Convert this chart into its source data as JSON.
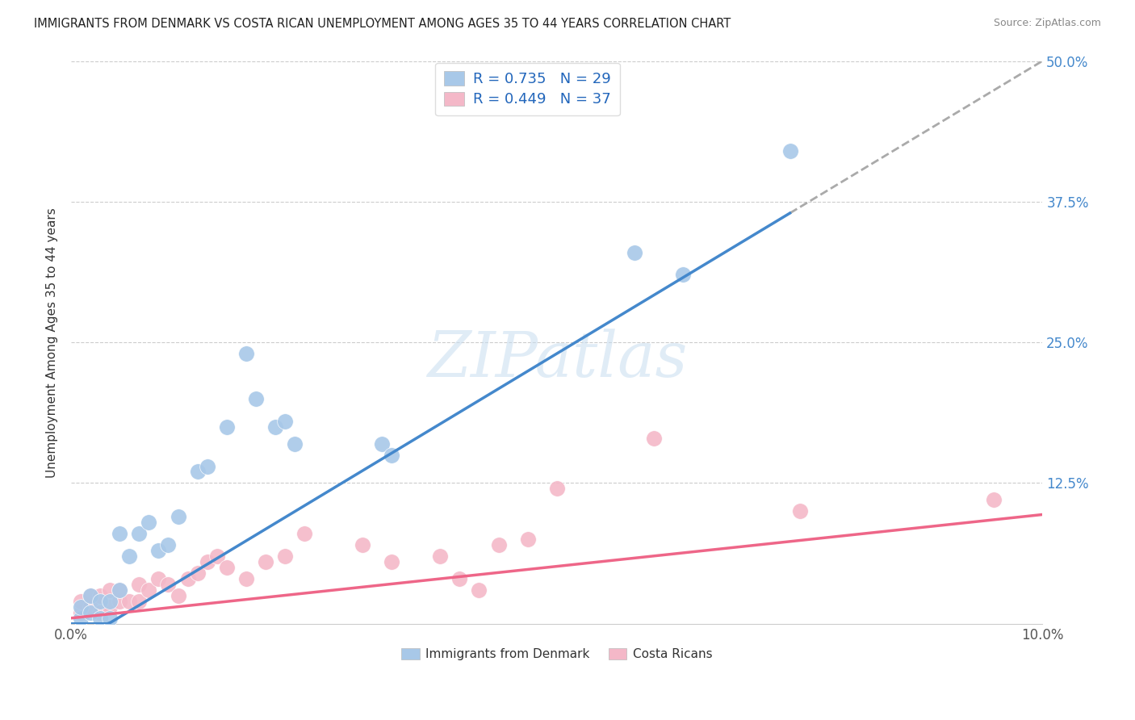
{
  "title": "IMMIGRANTS FROM DENMARK VS COSTA RICAN UNEMPLOYMENT AMONG AGES 35 TO 44 YEARS CORRELATION CHART",
  "source": "Source: ZipAtlas.com",
  "ylabel": "Unemployment Among Ages 35 to 44 years",
  "xlim": [
    0,
    0.1
  ],
  "ylim": [
    0,
    0.5
  ],
  "yticks": [
    0.0,
    0.125,
    0.25,
    0.375,
    0.5
  ],
  "yticklabels_right": [
    "",
    "12.5%",
    "25.0%",
    "37.5%",
    "50.0%"
  ],
  "legend_label1": "Immigrants from Denmark",
  "legend_label2": "Costa Ricans",
  "R1": 0.735,
  "N1": 29,
  "R2": 0.449,
  "N2": 37,
  "color_blue": "#a8c8e8",
  "color_pink": "#f4b8c8",
  "color_line_blue": "#4488cc",
  "color_line_pink": "#ee6688",
  "watermark": "ZIPatlas",
  "blue_line_slope": 5.2,
  "blue_line_intercept": -0.02,
  "pink_line_slope": 0.92,
  "pink_line_intercept": 0.005,
  "blue_x": [
    0.001,
    0.001,
    0.002,
    0.002,
    0.003,
    0.003,
    0.004,
    0.004,
    0.005,
    0.005,
    0.006,
    0.007,
    0.008,
    0.009,
    0.01,
    0.011,
    0.013,
    0.014,
    0.016,
    0.018,
    0.019,
    0.021,
    0.022,
    0.023,
    0.032,
    0.033,
    0.058,
    0.063,
    0.074
  ],
  "blue_y": [
    0.005,
    0.015,
    0.01,
    0.025,
    0.02,
    0.005,
    0.005,
    0.02,
    0.03,
    0.08,
    0.06,
    0.08,
    0.09,
    0.065,
    0.07,
    0.095,
    0.135,
    0.14,
    0.175,
    0.24,
    0.2,
    0.175,
    0.18,
    0.16,
    0.16,
    0.15,
    0.33,
    0.31,
    0.42
  ],
  "pink_x": [
    0.001,
    0.001,
    0.002,
    0.002,
    0.003,
    0.003,
    0.004,
    0.004,
    0.005,
    0.005,
    0.006,
    0.007,
    0.007,
    0.008,
    0.009,
    0.01,
    0.011,
    0.012,
    0.013,
    0.014,
    0.015,
    0.016,
    0.018,
    0.02,
    0.022,
    0.024,
    0.03,
    0.033,
    0.038,
    0.04,
    0.042,
    0.044,
    0.047,
    0.05,
    0.06,
    0.075,
    0.095
  ],
  "pink_y": [
    0.01,
    0.02,
    0.015,
    0.025,
    0.01,
    0.025,
    0.015,
    0.03,
    0.02,
    0.03,
    0.02,
    0.035,
    0.02,
    0.03,
    0.04,
    0.035,
    0.025,
    0.04,
    0.045,
    0.055,
    0.06,
    0.05,
    0.04,
    0.055,
    0.06,
    0.08,
    0.07,
    0.055,
    0.06,
    0.04,
    0.03,
    0.07,
    0.075,
    0.12,
    0.165,
    0.1,
    0.11
  ]
}
